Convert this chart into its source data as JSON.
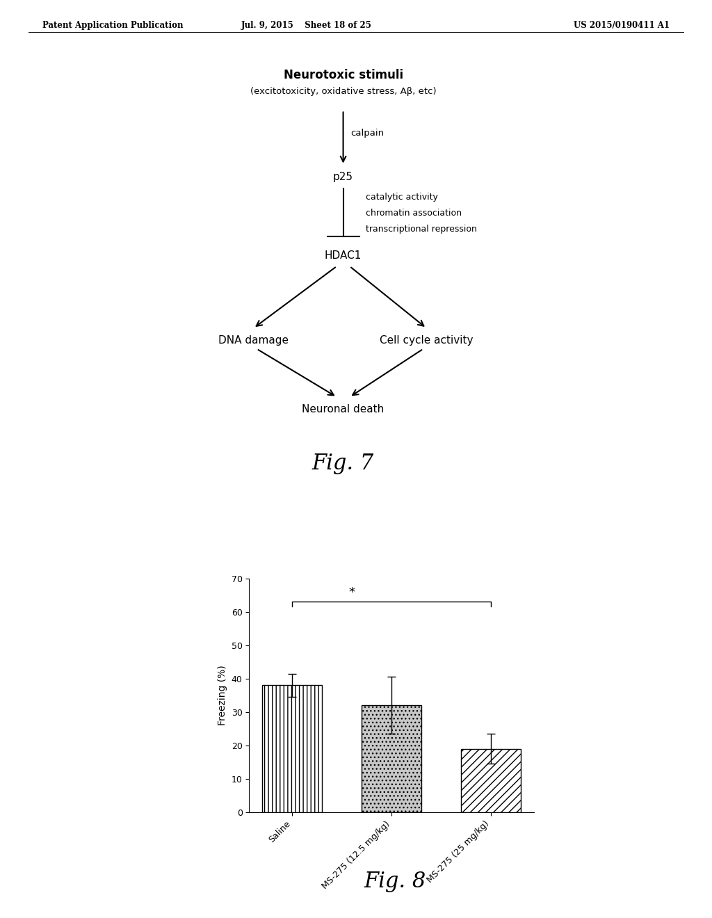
{
  "header_left": "Patent Application Publication",
  "header_mid": "Jul. 9, 2015    Sheet 18 of 25",
  "header_right": "US 2015/0190411 A1",
  "fig7_title": "Fig. 7",
  "fig8_title": "Fig. 8",
  "diagram": {
    "neurotoxic_label": "Neurotoxic stimuli",
    "neurotoxic_sub": "(excitotoxicity, oxidative stress, Aβ, etc)",
    "calpain_label": "calpain",
    "p25_label": "p25",
    "hdac1_effects": [
      "catalytic activity",
      "chromatin association",
      "transcriptional repression"
    ],
    "hdac1_label": "HDAC1",
    "dna_label": "DNA damage",
    "cell_label": "Cell cycle activity",
    "death_label": "Neuronal death"
  },
  "bar_categories": [
    "Saline",
    "MS-275 (12.5 mg/kg)",
    "MS-275 (25 mg/kg)"
  ],
  "bar_values": [
    38,
    32,
    19
  ],
  "bar_errors": [
    3.5,
    8.5,
    4.5
  ],
  "ylabel": "Freezing (%)",
  "ylim": [
    0,
    70
  ],
  "yticks": [
    0,
    10,
    20,
    30,
    40,
    50,
    60,
    70
  ],
  "sig_label": "*",
  "background_color": "#ffffff",
  "text_color": "#000000",
  "bar_edge_color": "#000000"
}
